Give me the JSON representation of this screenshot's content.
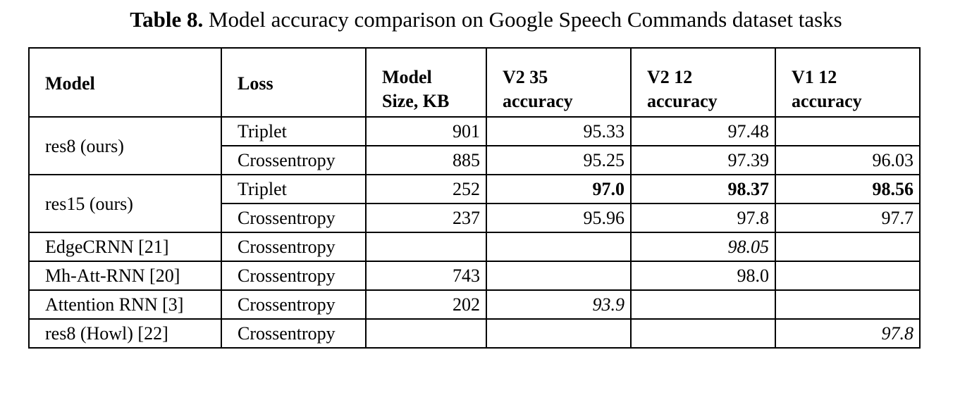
{
  "caption": {
    "label": "Table 8.",
    "text": " Model accuracy comparison on Google Speech Commands dataset tasks"
  },
  "header": {
    "model": "Model",
    "loss": "Loss",
    "size_l1": "Model",
    "size_l2": "Size, KB",
    "v2_35_l1": "V2 35",
    "v2_35_l2": "accuracy",
    "v2_12_l1": "V2 12",
    "v2_12_l2": "accuracy",
    "v1_12_l1": "V1 12",
    "v1_12_l2": "accuracy"
  },
  "groups": [
    {
      "model": "res8 (ours)",
      "rows": [
        {
          "loss": "Triplet",
          "size": "901",
          "v2_35": "95.33",
          "v2_12": "97.48",
          "v1_12": ""
        },
        {
          "loss": "Crossentropy",
          "size": "885",
          "v2_35": "95.25",
          "v2_12": "97.39",
          "v1_12": "96.03"
        }
      ]
    },
    {
      "model": "res15 (ours)",
      "rows": [
        {
          "loss": "Triplet",
          "size": "252",
          "v2_35": "97.0",
          "v2_12": "98.37",
          "v1_12": "98.56"
        },
        {
          "loss": "Crossentropy",
          "size": "237",
          "v2_35": "95.96",
          "v2_12": "97.8",
          "v1_12": "97.7"
        }
      ]
    }
  ],
  "others": [
    {
      "model": "EdgeCRNN [21]",
      "loss": "Crossentropy",
      "size": "",
      "v2_35": "",
      "v2_12": "98.05",
      "v1_12": ""
    },
    {
      "model": "Mh-Att-RNN [20]",
      "loss": "Crossentropy",
      "size": "743",
      "v2_35": "",
      "v2_12": "98.0",
      "v1_12": ""
    },
    {
      "model": "Attention RNN [3]",
      "loss": "Crossentropy",
      "size": "202",
      "v2_35": "93.9",
      "v2_12": "",
      "v1_12": ""
    },
    {
      "model": "res8 (Howl) [22]",
      "loss": "Crossentropy",
      "size": "",
      "v2_35": "",
      "v2_12": "",
      "v1_12": "97.8"
    }
  ]
}
